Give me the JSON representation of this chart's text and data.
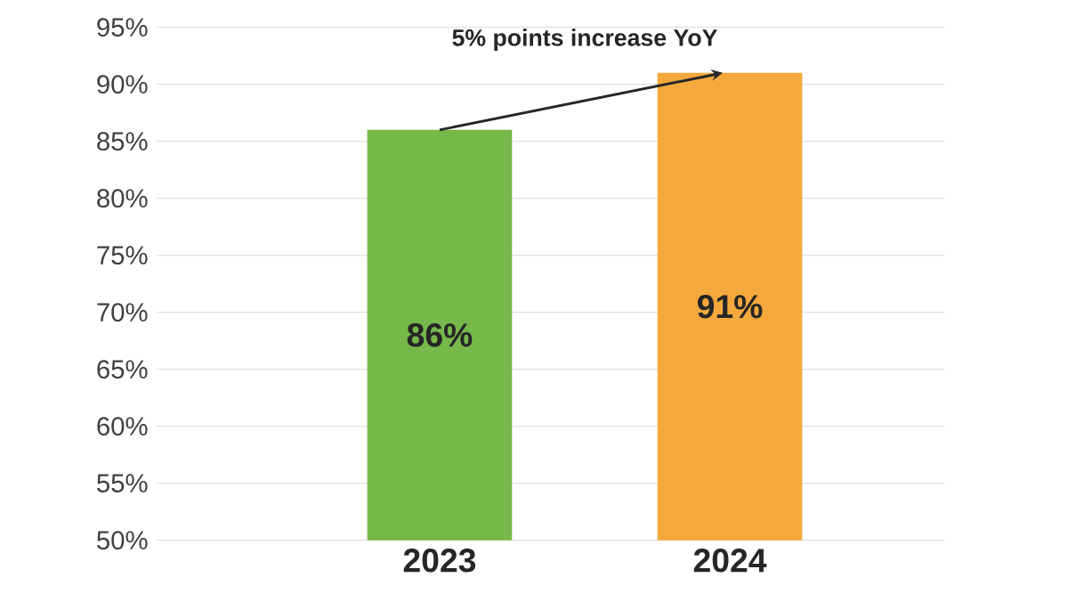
{
  "chart_data": {
    "type": "bar",
    "categories": [
      "2023",
      "2024"
    ],
    "values": [
      86,
      91
    ],
    "colors": [
      "#77b84a",
      "#f5a93d"
    ],
    "value_labels": [
      "86%",
      "91%"
    ],
    "ylim": [
      50,
      95
    ],
    "yticks": [
      {
        "value": 50,
        "label": "50%"
      },
      {
        "value": 55,
        "label": "55%"
      },
      {
        "value": 60,
        "label": "60%"
      },
      {
        "value": 65,
        "label": "65%"
      },
      {
        "value": 70,
        "label": "70%"
      },
      {
        "value": 75,
        "label": "75%"
      },
      {
        "value": 80,
        "label": "80%"
      },
      {
        "value": 85,
        "label": "85%"
      },
      {
        "value": 90,
        "label": "90%"
      },
      {
        "value": 95,
        "label": "95%"
      }
    ],
    "grid": "y",
    "annotations": [
      {
        "text": "5% points increase YoY",
        "x": "2024",
        "y": 91
      }
    ]
  }
}
